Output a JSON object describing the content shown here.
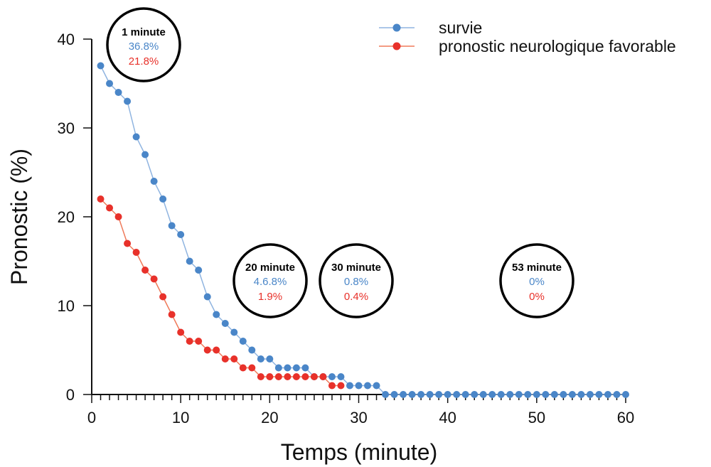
{
  "chart_data": {
    "type": "line",
    "xlabel": "Temps (minute)",
    "ylabel": "Pronostic (%)",
    "xlim": [
      0,
      60
    ],
    "ylim": [
      0,
      40
    ],
    "xticks": [
      0,
      10,
      20,
      30,
      40,
      50,
      60
    ],
    "yticks": [
      0,
      10,
      20,
      30,
      40
    ],
    "grid": false,
    "legend_position": "top-right",
    "colors": {
      "survie": "#4a86c8",
      "neuro": "#e8312a",
      "survie_line": "#8fb4e0",
      "neuro_line": "#ef7a5a"
    },
    "series": [
      {
        "name": "survie",
        "color": "#4a86c8",
        "x": [
          1,
          2,
          3,
          4,
          5,
          6,
          7,
          8,
          9,
          10,
          11,
          12,
          13,
          14,
          15,
          16,
          17,
          18,
          19,
          20,
          21,
          22,
          23,
          24,
          25,
          26,
          27,
          28,
          29,
          30,
          31,
          32,
          33,
          34,
          35,
          36,
          37,
          38,
          39,
          40,
          41,
          42,
          43,
          44,
          45,
          46,
          47,
          48,
          49,
          50,
          51,
          52,
          53,
          54,
          55,
          56,
          57,
          58,
          59,
          60
        ],
        "values": [
          37,
          35,
          34,
          33,
          29,
          27,
          24,
          22,
          19,
          18,
          15,
          14,
          11,
          9,
          8,
          7,
          6,
          5,
          4,
          4,
          3,
          3,
          3,
          3,
          2,
          2,
          2,
          2,
          1,
          1,
          1,
          1,
          0,
          0,
          0,
          0,
          0,
          0,
          0,
          0,
          0,
          0,
          0,
          0,
          0,
          0,
          0,
          0,
          0,
          0,
          0,
          0,
          0,
          0,
          0,
          0,
          0,
          0,
          0,
          0
        ]
      },
      {
        "name": "pronostic neurologique favorable",
        "color": "#e8312a",
        "x": [
          1,
          2,
          3,
          4,
          5,
          6,
          7,
          8,
          9,
          10,
          11,
          12,
          13,
          14,
          15,
          16,
          17,
          18,
          19,
          20,
          21,
          22,
          23,
          24,
          25,
          26,
          27,
          28
        ],
        "values": [
          22,
          21,
          20,
          17,
          16,
          14,
          13,
          11,
          9,
          7,
          6,
          6,
          5,
          5,
          4,
          4,
          3,
          3,
          2,
          2,
          2,
          2,
          2,
          2,
          2,
          2,
          1,
          1
        ]
      }
    ],
    "annotations": [
      {
        "title": "1 minute",
        "survie": "36.8%",
        "neuro": "21.8%"
      },
      {
        "title": "20 minute",
        "survie": "4.6.8%",
        "neuro": "1.9%"
      },
      {
        "title": "30 minute",
        "survie": "0.8%",
        "neuro": "0.4%"
      },
      {
        "title": "53 minute",
        "survie": "0%",
        "neuro": "0%"
      }
    ]
  }
}
